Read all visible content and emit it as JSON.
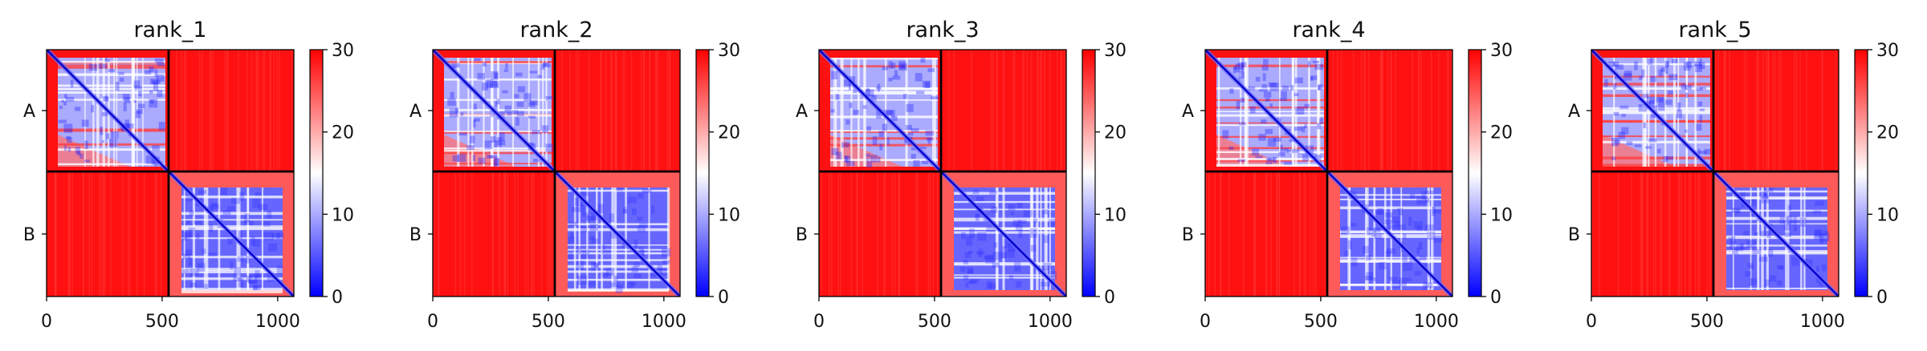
{
  "chart_data": [
    {
      "type": "heatmap",
      "title": "rank_1",
      "xlabel": "",
      "ylabel": "",
      "x_ticks": [
        0,
        500,
        1000
      ],
      "y_tick_labels": [
        "A",
        "B"
      ],
      "chains": [
        {
          "name": "A",
          "start": 0,
          "end": 528
        },
        {
          "name": "B",
          "start": 528,
          "end": 1070
        }
      ],
      "xlim": [
        0,
        1070
      ],
      "ylim": [
        1070,
        0
      ],
      "colorbar": {
        "min": 0,
        "max": 30,
        "ticks": [
          0,
          10,
          20,
          30
        ],
        "colormap": "bwr",
        "low_color": "#0000ff",
        "mid_color": "#ffffff",
        "high_color": "#ff0000"
      },
      "block_mean_values": {
        "A-A": 10,
        "A-B": 29,
        "B-A": 29,
        "B-B": 6
      }
    },
    {
      "type": "heatmap",
      "title": "rank_2",
      "xlabel": "",
      "ylabel": "",
      "x_ticks": [
        0,
        500,
        1000
      ],
      "y_tick_labels": [
        "A",
        "B"
      ],
      "chains": [
        {
          "name": "A",
          "start": 0,
          "end": 528
        },
        {
          "name": "B",
          "start": 528,
          "end": 1070
        }
      ],
      "xlim": [
        0,
        1070
      ],
      "ylim": [
        1070,
        0
      ],
      "colorbar": {
        "min": 0,
        "max": 30,
        "ticks": [
          0,
          10,
          20,
          30
        ],
        "colormap": "bwr",
        "low_color": "#0000ff",
        "mid_color": "#ffffff",
        "high_color": "#ff0000"
      },
      "block_mean_values": {
        "A-A": 10,
        "A-B": 29,
        "B-A": 29,
        "B-B": 6
      }
    },
    {
      "type": "heatmap",
      "title": "rank_3",
      "xlabel": "",
      "ylabel": "",
      "x_ticks": [
        0,
        500,
        1000
      ],
      "y_tick_labels": [
        "A",
        "B"
      ],
      "chains": [
        {
          "name": "A",
          "start": 0,
          "end": 528
        },
        {
          "name": "B",
          "start": 528,
          "end": 1070
        }
      ],
      "xlim": [
        0,
        1070
      ],
      "ylim": [
        1070,
        0
      ],
      "colorbar": {
        "min": 0,
        "max": 30,
        "ticks": [
          0,
          10,
          20,
          30
        ],
        "colormap": "bwr",
        "low_color": "#0000ff",
        "mid_color": "#ffffff",
        "high_color": "#ff0000"
      },
      "block_mean_values": {
        "A-A": 10,
        "A-B": 29,
        "B-A": 29,
        "B-B": 6
      }
    },
    {
      "type": "heatmap",
      "title": "rank_4",
      "xlabel": "",
      "ylabel": "",
      "x_ticks": [
        0,
        500,
        1000
      ],
      "y_tick_labels": [
        "A",
        "B"
      ],
      "chains": [
        {
          "name": "A",
          "start": 0,
          "end": 528
        },
        {
          "name": "B",
          "start": 528,
          "end": 1070
        }
      ],
      "xlim": [
        0,
        1070
      ],
      "ylim": [
        1070,
        0
      ],
      "colorbar": {
        "min": 0,
        "max": 30,
        "ticks": [
          0,
          10,
          20,
          30
        ],
        "colormap": "bwr",
        "low_color": "#0000ff",
        "mid_color": "#ffffff",
        "high_color": "#ff0000"
      },
      "block_mean_values": {
        "A-A": 10,
        "A-B": 29,
        "B-A": 29,
        "B-B": 6
      }
    },
    {
      "type": "heatmap",
      "title": "rank_5",
      "xlabel": "",
      "ylabel": "",
      "x_ticks": [
        0,
        500,
        1000
      ],
      "y_tick_labels": [
        "A",
        "B"
      ],
      "chains": [
        {
          "name": "A",
          "start": 0,
          "end": 528
        },
        {
          "name": "B",
          "start": 528,
          "end": 1070
        }
      ],
      "xlim": [
        0,
        1070
      ],
      "ylim": [
        1070,
        0
      ],
      "colorbar": {
        "min": 0,
        "max": 30,
        "ticks": [
          0,
          10,
          20,
          30
        ],
        "colormap": "bwr",
        "low_color": "#0000ff",
        "mid_color": "#ffffff",
        "high_color": "#ff0000"
      },
      "block_mean_values": {
        "A-A": 10,
        "A-B": 29,
        "B-A": 29,
        "B-B": 6
      }
    }
  ]
}
